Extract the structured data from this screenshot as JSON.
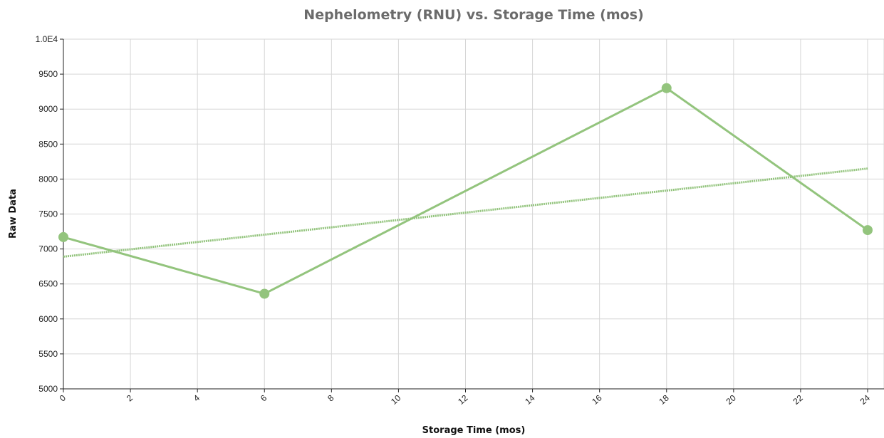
{
  "chart_data": {
    "type": "line",
    "title": "Nephelometry (RNU) vs. Storage Time (mos)",
    "xlabel": "Storage Time (mos)",
    "ylabel": "Raw Data",
    "xlim": [
      0,
      24
    ],
    "ylim": [
      5000,
      10000
    ],
    "x_ticks": [
      0,
      2,
      4,
      6,
      8,
      10,
      12,
      14,
      16,
      18,
      20,
      22,
      24
    ],
    "y_ticks": [
      5000,
      5500,
      6000,
      6500,
      7000,
      7500,
      8000,
      8500,
      9000,
      9500,
      10000
    ],
    "y_tick_labels": [
      "5000",
      "5500",
      "6000",
      "6500",
      "7000",
      "7500",
      "8000",
      "8500",
      "9000",
      "9500",
      "1.0E4"
    ],
    "grid": true,
    "series": [
      {
        "kind": "data",
        "style": "solid-with-markers",
        "color": "#93c47d",
        "x": [
          0,
          6,
          18,
          24
        ],
        "y": [
          7170,
          6360,
          9300,
          7270
        ]
      },
      {
        "kind": "trend",
        "style": "dashed",
        "color": "#93c47d",
        "x": [
          0,
          24
        ],
        "y": [
          6890,
          8150
        ]
      }
    ]
  }
}
